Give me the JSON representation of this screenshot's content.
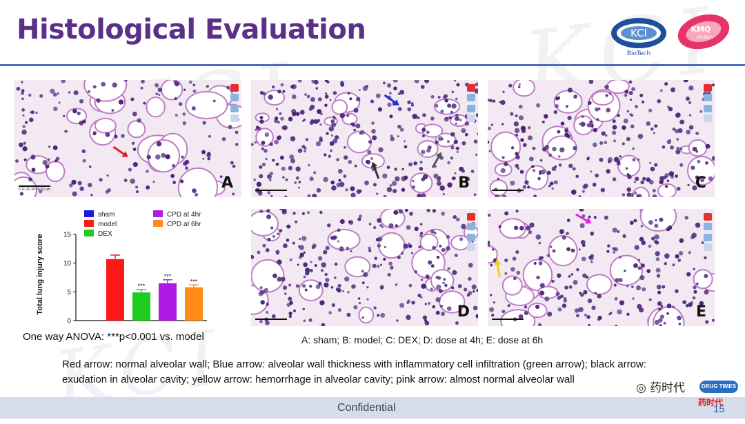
{
  "header": {
    "title": "Histological Evaluation"
  },
  "logos": {
    "kci": {
      "main": "KCI",
      "sub": "BioTech"
    },
    "kmq": {
      "main": "KMQ",
      "sub": "BioTech"
    }
  },
  "watermark": "KCI",
  "panels": [
    {
      "id": "A",
      "label": "A",
      "scale_text": "0 10 20 30 40 50 μm"
    },
    {
      "id": "B",
      "label": "B",
      "scale_text": ""
    },
    {
      "id": "C",
      "label": "C",
      "scale_text": ""
    },
    {
      "id": "D",
      "label": "D",
      "scale_text": ""
    },
    {
      "id": "E",
      "label": "E",
      "scale_text": ""
    }
  ],
  "chart_data": {
    "type": "bar",
    "categories": [
      "model",
      "DEX",
      "CPD at 4hr",
      "CPD at 6hr"
    ],
    "values": [
      10.7,
      4.9,
      6.5,
      5.8
    ],
    "errors": [
      0.7,
      0.5,
      0.6,
      0.4
    ],
    "significance": [
      "",
      "***",
      "***",
      "***"
    ],
    "legend": [
      "sham",
      "model",
      "DEX",
      "CPD at 4hr",
      "CPD at 6hr"
    ],
    "legend_colors": [
      "#1a1ae6",
      "#ff1a1a",
      "#1fcc1f",
      "#b01ae6",
      "#ff8c1a"
    ],
    "bar_colors": [
      "#ff1a1a",
      "#1fcc1f",
      "#b01ae6",
      "#ff8c1a"
    ],
    "ylabel": "Total lung injury score",
    "ylim": [
      0,
      15
    ],
    "yticks": [
      0,
      5,
      10,
      15
    ]
  },
  "captions": {
    "anova": "One way ANOVA: ***p<0.001 vs. model",
    "panels": "A: sham; B: model; C: DEX; D: dose at 4h; E: dose at 6h",
    "arrows": "Red arrow: normal alveolar wall; Blue arrow: alveolar wall thickness with inflammatory cell infiltration (green arrow); black arrow: exudation in alveolar cavity; yellow arrow: hemorrhage in alveolar cavity; pink arrow: almost normal alveolar wall"
  },
  "footer": {
    "text": "Confidential",
    "page": "15"
  },
  "overlay": {
    "wechat": "药时代",
    "drug_logo": "DRUG TIMES",
    "drug_sub": "药时代"
  },
  "colors": {
    "title": "#5b3188",
    "rule": "#4a6fb5",
    "footer_band": "#d5dcec",
    "tissue_bg": "#f2e9f3",
    "nucleus": "#4a2378",
    "wall": "#c07cc6"
  }
}
